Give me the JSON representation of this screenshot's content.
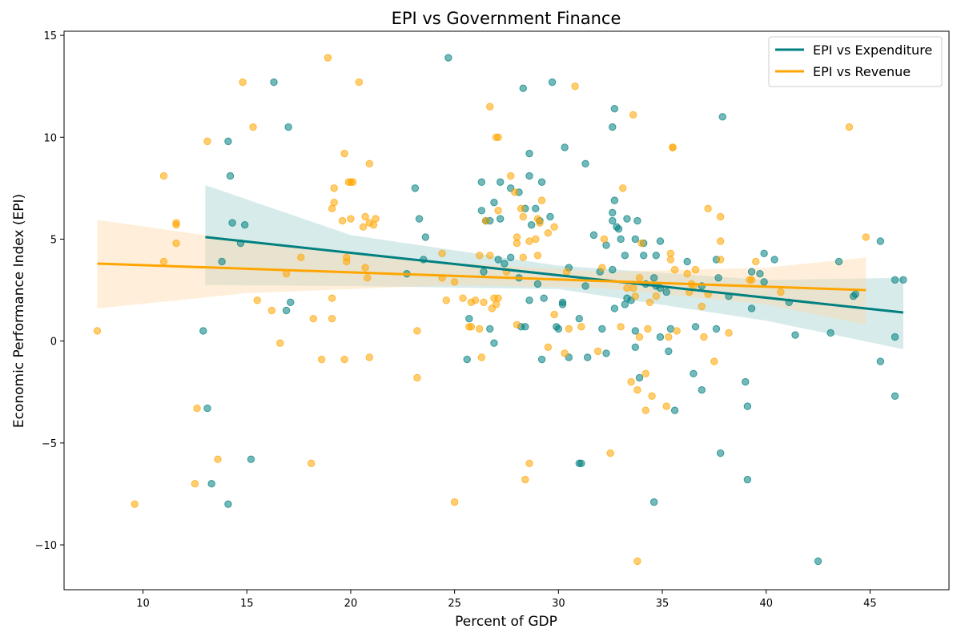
{
  "chart_data": {
    "type": "scatter",
    "title": "EPI vs Government Finance",
    "xlabel": "Percent of GDP",
    "ylabel": "Economic Performance Index (EPI)",
    "xlim": [
      6.2,
      48.8
    ],
    "ylim": [
      -12.2,
      15.2
    ],
    "xticks": [
      10,
      15,
      20,
      25,
      30,
      35,
      40,
      45
    ],
    "yticks": [
      -10,
      -5,
      0,
      5,
      10,
      15
    ],
    "ytick_labels": [
      "−10",
      "−5",
      "0",
      "5",
      "10",
      "15"
    ],
    "legend_position": "top-right",
    "series": [
      {
        "name": "EPI vs Expenditure",
        "color": "#008080",
        "fit": {
          "x": [
            13.0,
            46.6
          ],
          "y": [
            5.1,
            1.4
          ]
        },
        "ci_lower": [
          [
            13.0,
            2.75
          ],
          [
            20,
            2.7
          ],
          [
            30,
            2.55
          ],
          [
            40,
            1.0
          ],
          [
            46.6,
            -0.4
          ]
        ],
        "ci_upper": [
          [
            13.0,
            7.65
          ],
          [
            20,
            5.2
          ],
          [
            30,
            3.7
          ],
          [
            40,
            3.0
          ],
          [
            46.6,
            3.1
          ]
        ],
        "points": [
          [
            24.7,
            13.9
          ],
          [
            16.3,
            12.7
          ],
          [
            29.7,
            12.7
          ],
          [
            28.3,
            12.4
          ],
          [
            17.0,
            10.5
          ],
          [
            32.7,
            11.4
          ],
          [
            37.9,
            11.0
          ],
          [
            32.6,
            10.5
          ],
          [
            14.1,
            9.8
          ],
          [
            30.3,
            9.5
          ],
          [
            28.6,
            9.2
          ],
          [
            31.3,
            8.7
          ],
          [
            14.2,
            8.1
          ],
          [
            28.6,
            8.1
          ],
          [
            26.3,
            7.8
          ],
          [
            27.2,
            7.8
          ],
          [
            29.2,
            7.8
          ],
          [
            23.1,
            7.5
          ],
          [
            27.7,
            7.5
          ],
          [
            28.1,
            7.3
          ],
          [
            26.9,
            6.8
          ],
          [
            32.7,
            6.9
          ],
          [
            26.3,
            6.4
          ],
          [
            28.4,
            6.5
          ],
          [
            28.9,
            6.5
          ],
          [
            32.6,
            6.3
          ],
          [
            23.3,
            6.0
          ],
          [
            26.5,
            5.9
          ],
          [
            26.7,
            5.9
          ],
          [
            27.2,
            6.0
          ],
          [
            29.1,
            5.9
          ],
          [
            29.6,
            6.1
          ],
          [
            33.3,
            6.0
          ],
          [
            32.6,
            5.9
          ],
          [
            33.8,
            5.9
          ],
          [
            14.3,
            5.8
          ],
          [
            14.9,
            5.7
          ],
          [
            28.7,
            5.7
          ],
          [
            32.8,
            5.6
          ],
          [
            32.9,
            5.5
          ],
          [
            23.6,
            5.1
          ],
          [
            31.7,
            5.2
          ],
          [
            33.0,
            5.0
          ],
          [
            33.7,
            5.0
          ],
          [
            34.1,
            4.8
          ],
          [
            34.9,
            4.9
          ],
          [
            14.7,
            4.8
          ],
          [
            32.3,
            4.7
          ],
          [
            27.1,
            4.0
          ],
          [
            27.7,
            4.1
          ],
          [
            30.5,
            3.6
          ],
          [
            33.2,
            4.2
          ],
          [
            34.7,
            4.2
          ],
          [
            34.1,
            4.2
          ],
          [
            36.2,
            3.9
          ],
          [
            37.6,
            4.0
          ],
          [
            39.9,
            4.3
          ],
          [
            40.4,
            4.0
          ],
          [
            43.5,
            3.9
          ],
          [
            45.5,
            4.9
          ],
          [
            13.8,
            3.9
          ],
          [
            23.5,
            4.0
          ],
          [
            26.4,
            3.4
          ],
          [
            27.4,
            3.8
          ],
          [
            28.1,
            3.1
          ],
          [
            32.0,
            3.4
          ],
          [
            32.6,
            3.5
          ],
          [
            34.6,
            3.1
          ],
          [
            37.7,
            3.1
          ],
          [
            39.7,
            3.3
          ],
          [
            39.9,
            2.9
          ],
          [
            39.3,
            3.4
          ],
          [
            46.2,
            3.0
          ],
          [
            46.6,
            3.0
          ],
          [
            22.7,
            3.3
          ],
          [
            29.0,
            2.8
          ],
          [
            31.3,
            2.7
          ],
          [
            34.2,
            2.8
          ],
          [
            34.7,
            2.7
          ],
          [
            34.9,
            2.6
          ],
          [
            35.2,
            2.4
          ],
          [
            36.9,
            2.7
          ],
          [
            38.2,
            2.2
          ],
          [
            44.2,
            2.2
          ],
          [
            44.3,
            2.3
          ],
          [
            17.1,
            1.9
          ],
          [
            16.9,
            1.5
          ],
          [
            28.6,
            2.0
          ],
          [
            29.3,
            2.1
          ],
          [
            30.2,
            1.9
          ],
          [
            30.2,
            1.8
          ],
          [
            33.2,
            1.8
          ],
          [
            32.7,
            1.6
          ],
          [
            33.3,
            2.1
          ],
          [
            33.5,
            2.0
          ],
          [
            39.3,
            1.6
          ],
          [
            41.1,
            1.9
          ],
          [
            12.9,
            0.5
          ],
          [
            25.7,
            1.1
          ],
          [
            26.7,
            0.6
          ],
          [
            28.4,
            0.7
          ],
          [
            28.2,
            0.7
          ],
          [
            29.9,
            0.7
          ],
          [
            30.0,
            0.6
          ],
          [
            31.0,
            1.1
          ],
          [
            32.1,
            0.6
          ],
          [
            33.7,
            0.5
          ],
          [
            35.4,
            0.6
          ],
          [
            36.6,
            0.7
          ],
          [
            37.6,
            0.6
          ],
          [
            34.9,
            0.2
          ],
          [
            41.4,
            0.3
          ],
          [
            43.1,
            0.4
          ],
          [
            46.2,
            0.2
          ],
          [
            26.9,
            -0.1
          ],
          [
            33.7,
            -0.3
          ],
          [
            25.6,
            -0.9
          ],
          [
            29.2,
            -0.9
          ],
          [
            30.5,
            -0.8
          ],
          [
            31.4,
            -0.8
          ],
          [
            32.3,
            -0.6
          ],
          [
            35.3,
            -0.5
          ],
          [
            45.5,
            -1.0
          ],
          [
            33.9,
            -1.8
          ],
          [
            36.5,
            -1.6
          ],
          [
            36.9,
            -2.4
          ],
          [
            39.0,
            -2.0
          ],
          [
            46.2,
            -2.7
          ],
          [
            13.1,
            -3.3
          ],
          [
            35.6,
            -3.4
          ],
          [
            39.1,
            -3.2
          ],
          [
            15.2,
            -5.8
          ],
          [
            31.0,
            -6.0
          ],
          [
            31.1,
            -6.0
          ],
          [
            37.8,
            -5.5
          ],
          [
            13.3,
            -7.0
          ],
          [
            14.1,
            -8.0
          ],
          [
            34.6,
            -7.9
          ],
          [
            39.1,
            -6.8
          ],
          [
            42.5,
            -10.8
          ]
        ]
      },
      {
        "name": "EPI vs Revenue",
        "color": "#FFA500",
        "fit": {
          "x": [
            7.8,
            44.8
          ],
          "y": [
            3.8,
            2.5
          ]
        },
        "ci_lower": [
          [
            7.8,
            1.6
          ],
          [
            15,
            2.35
          ],
          [
            25,
            2.75
          ],
          [
            32,
            2.6
          ],
          [
            40,
            1.8
          ],
          [
            44.8,
            0.8
          ]
        ],
        "ci_upper": [
          [
            7.8,
            5.95
          ],
          [
            15,
            4.9
          ],
          [
            25,
            3.85
          ],
          [
            32,
            3.4
          ],
          [
            40,
            3.6
          ],
          [
            44.8,
            4.1
          ]
        ],
        "points": [
          [
            18.9,
            13.9
          ],
          [
            14.8,
            12.7
          ],
          [
            20.4,
            12.7
          ],
          [
            30.8,
            12.5
          ],
          [
            26.7,
            11.5
          ],
          [
            33.6,
            11.1
          ],
          [
            44.0,
            10.5
          ],
          [
            15.3,
            10.5
          ],
          [
            27.0,
            10.0
          ],
          [
            27.1,
            10.0
          ],
          [
            13.1,
            9.8
          ],
          [
            35.5,
            9.5
          ],
          [
            19.7,
            9.2
          ],
          [
            11.0,
            8.1
          ],
          [
            20.9,
            8.7
          ],
          [
            27.7,
            8.1
          ],
          [
            19.2,
            7.5
          ],
          [
            19.9,
            7.8
          ],
          [
            20.0,
            7.8
          ],
          [
            20.1,
            7.8
          ],
          [
            27.9,
            7.3
          ],
          [
            33.1,
            7.5
          ],
          [
            29.2,
            6.9
          ],
          [
            19.1,
            6.5
          ],
          [
            19.2,
            6.8
          ],
          [
            27.1,
            6.4
          ],
          [
            28.2,
            6.5
          ],
          [
            37.2,
            6.5
          ],
          [
            37.8,
            6.1
          ],
          [
            19.6,
            5.9
          ],
          [
            20.0,
            6.0
          ],
          [
            20.7,
            6.1
          ],
          [
            21.2,
            6.0
          ],
          [
            26.5,
            5.9
          ],
          [
            28.3,
            6.1
          ],
          [
            29.0,
            6.0
          ],
          [
            29.1,
            5.8
          ],
          [
            11.6,
            5.8
          ],
          [
            11.6,
            5.7
          ],
          [
            20.6,
            5.6
          ],
          [
            20.9,
            5.8
          ],
          [
            21.1,
            5.7
          ],
          [
            29.8,
            5.6
          ],
          [
            29.5,
            5.3
          ],
          [
            28.0,
            5.1
          ],
          [
            28.6,
            4.9
          ],
          [
            28.9,
            5.0
          ],
          [
            32.2,
            5.0
          ],
          [
            35.5,
            9.5
          ],
          [
            44.8,
            5.1
          ],
          [
            11.6,
            4.8
          ],
          [
            28.0,
            4.8
          ],
          [
            34.0,
            4.8
          ],
          [
            35.4,
            4.3
          ],
          [
            37.8,
            4.9
          ],
          [
            24.4,
            4.3
          ],
          [
            26.2,
            4.2
          ],
          [
            26.7,
            4.2
          ],
          [
            29.0,
            4.2
          ],
          [
            17.6,
            4.1
          ],
          [
            19.8,
            4.1
          ],
          [
            19.8,
            3.9
          ],
          [
            28.3,
            4.1
          ],
          [
            35.4,
            4.0
          ],
          [
            37.8,
            4.0
          ],
          [
            39.5,
            3.9
          ],
          [
            11.0,
            3.9
          ],
          [
            20.7,
            3.6
          ],
          [
            27.5,
            3.4
          ],
          [
            32.1,
            3.6
          ],
          [
            35.6,
            3.5
          ],
          [
            30.4,
            3.4
          ],
          [
            33.9,
            3.1
          ],
          [
            36.2,
            3.3
          ],
          [
            36.6,
            3.5
          ],
          [
            39.2,
            3.0
          ],
          [
            39.3,
            3.0
          ],
          [
            16.9,
            3.3
          ],
          [
            20.8,
            3.1
          ],
          [
            24.4,
            3.1
          ],
          [
            25.0,
            2.9
          ],
          [
            36.4,
            2.8
          ],
          [
            36.5,
            2.7
          ],
          [
            33.3,
            2.6
          ],
          [
            33.6,
            2.6
          ],
          [
            36.3,
            2.4
          ],
          [
            37.2,
            2.3
          ],
          [
            40.7,
            2.4
          ],
          [
            26.9,
            2.1
          ],
          [
            27.1,
            2.1
          ],
          [
            33.7,
            2.2
          ],
          [
            34.7,
            2.2
          ],
          [
            25.4,
            2.1
          ],
          [
            19.1,
            2.1
          ],
          [
            15.5,
            2.0
          ],
          [
            24.6,
            2.0
          ],
          [
            26.0,
            2.0
          ],
          [
            25.8,
            1.9
          ],
          [
            26.4,
            1.9
          ],
          [
            27.0,
            1.8
          ],
          [
            34.4,
            1.9
          ],
          [
            16.2,
            1.5
          ],
          [
            26.8,
            1.6
          ],
          [
            36.9,
            1.7
          ],
          [
            18.2,
            1.1
          ],
          [
            19.1,
            1.1
          ],
          [
            29.8,
            1.3
          ],
          [
            25.8,
            0.7
          ],
          [
            25.7,
            0.7
          ],
          [
            26.2,
            0.6
          ],
          [
            28.0,
            0.8
          ],
          [
            30.5,
            0.6
          ],
          [
            31.1,
            0.7
          ],
          [
            33.0,
            0.7
          ],
          [
            34.3,
            0.6
          ],
          [
            7.8,
            0.5
          ],
          [
            23.2,
            0.5
          ],
          [
            33.9,
            0.2
          ],
          [
            35.3,
            0.2
          ],
          [
            35.7,
            0.5
          ],
          [
            37.0,
            0.2
          ],
          [
            38.2,
            0.4
          ],
          [
            16.6,
            -0.1
          ],
          [
            29.5,
            -0.3
          ],
          [
            30.3,
            -0.6
          ],
          [
            31.9,
            -0.5
          ],
          [
            18.6,
            -0.9
          ],
          [
            19.7,
            -0.9
          ],
          [
            20.9,
            -0.8
          ],
          [
            26.3,
            -0.8
          ],
          [
            37.5,
            -1.0
          ],
          [
            23.2,
            -1.8
          ],
          [
            34.2,
            -1.6
          ],
          [
            33.5,
            -2.0
          ],
          [
            33.8,
            -2.4
          ],
          [
            34.5,
            -2.7
          ],
          [
            12.6,
            -3.3
          ],
          [
            34.2,
            -3.4
          ],
          [
            35.2,
            -3.2
          ],
          [
            13.6,
            -5.8
          ],
          [
            18.1,
            -6.0
          ],
          [
            28.6,
            -6.0
          ],
          [
            32.5,
            -5.5
          ],
          [
            12.5,
            -7.0
          ],
          [
            9.6,
            -8.0
          ],
          [
            25.0,
            -7.9
          ],
          [
            28.4,
            -6.8
          ],
          [
            33.8,
            -10.8
          ]
        ]
      }
    ]
  }
}
